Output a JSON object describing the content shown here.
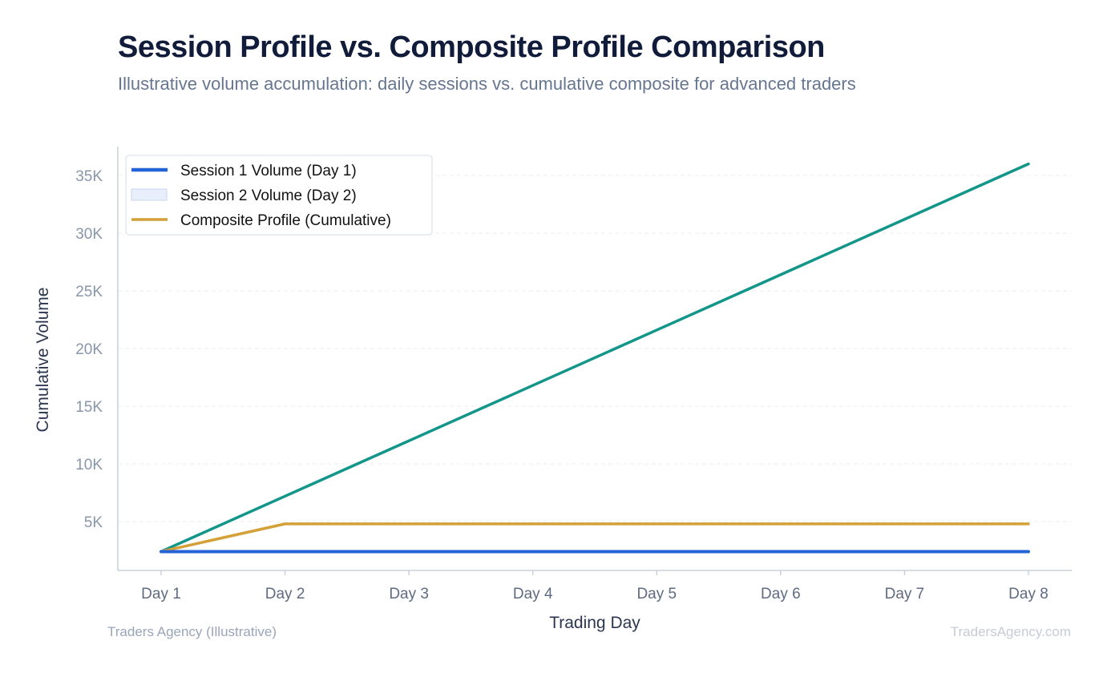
{
  "header": {
    "title": "Session Profile vs. Composite Profile Comparison",
    "subtitle": "Illustrative volume accumulation: daily sessions vs. cumulative composite for advanced traders"
  },
  "footer": {
    "left": "Traders Agency (Illustrative)",
    "right": "TradersAgency.com"
  },
  "colors": {
    "session1": "#2563d9",
    "session2_fill": "#e8eefa",
    "session2_edge": "#c9d7f2",
    "composite_legend": "#d4a038",
    "teal_line": "#13968a",
    "axis": "#c8d0dc",
    "grid": "#e9edf2",
    "tick_text": "#8a96aa",
    "label_text": "#2b3650"
  },
  "chart_data": {
    "type": "line",
    "title": "Session Profile vs. Composite Profile Comparison",
    "subtitle": "Illustrative volume accumulation: daily sessions vs. cumulative composite for advanced traders",
    "xlabel": "Trading Day",
    "ylabel": "Cumulative Volume",
    "categories": [
      "Day 1",
      "Day 2",
      "Day 3",
      "Day 4",
      "Day 5",
      "Day 6",
      "Day 7",
      "Day 8"
    ],
    "yticks": [
      5000,
      10000,
      15000,
      20000,
      25000,
      30000,
      35000
    ],
    "ytick_labels": [
      "5K",
      "10K",
      "15K",
      "20K",
      "25K",
      "30K",
      "35K"
    ],
    "ylim": [
      0,
      38000
    ],
    "grid": true,
    "legend_position": "top-left",
    "legend": [
      "Session 1 Volume (Day 1)",
      "Session 2 Volume (Day 2)",
      "Composite Profile (Cumulative)"
    ],
    "series": [
      {
        "name": "Session 1 Volume (Day 1)",
        "color": "#2563d9",
        "values": [
          2400,
          2400,
          2400,
          2400,
          2400,
          2400,
          2400,
          2400
        ]
      },
      {
        "name": "Session 2 Volume (Day 2)",
        "color": "#d4a038",
        "values": [
          2400,
          4800,
          4800,
          4800,
          4800,
          4800,
          4800,
          4800
        ]
      },
      {
        "name": "",
        "color": "#13968a",
        "values": [
          2400,
          7200,
          12000,
          16800,
          21600,
          26400,
          31200,
          36000
        ]
      }
    ]
  }
}
